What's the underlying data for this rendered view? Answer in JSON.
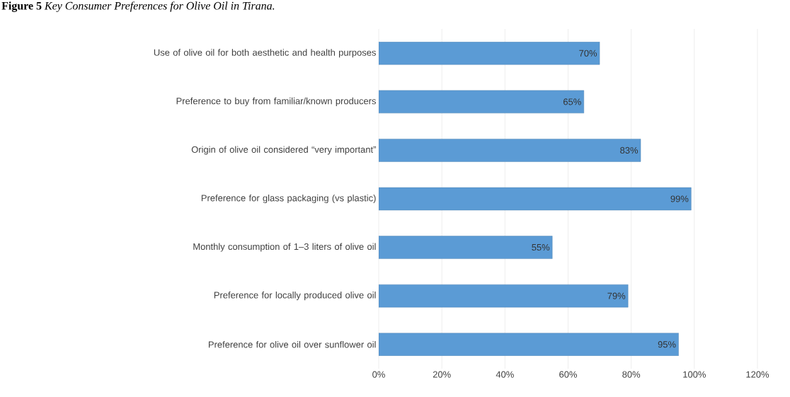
{
  "chart_data": {
    "type": "bar",
    "orientation": "horizontal",
    "title": "**Figure 5** *Key Consumer Preferences for Olive Oil in Tirana.*",
    "categories": [
      "Use of olive oil for both aesthetic and health purposes",
      "Preference to buy from familiar/known producers",
      "Origin of olive oil considered “very important”",
      "Preference for glass packaging (vs plastic)",
      "Monthly consumption of 1–3 liters of olive oil",
      "Preference for locally produced olive oil",
      "Preference for olive oil over sunflower oil"
    ],
    "values": [
      70,
      65,
      83,
      99,
      55,
      79,
      95
    ],
    "value_labels": [
      "70%",
      "65%",
      "83%",
      "99%",
      "55%",
      "79%",
      "95%"
    ],
    "color": "#5b9bd5",
    "xlim": [
      0,
      120
    ],
    "xticks": [
      {
        "value": 0,
        "label": "0%"
      },
      {
        "value": 20,
        "label": "20%"
      },
      {
        "value": 40,
        "label": "40%"
      },
      {
        "value": 60,
        "label": "60%"
      },
      {
        "value": 80,
        "label": "80%"
      },
      {
        "value": 100,
        "label": "100%"
      },
      {
        "value": 120,
        "label": "120%"
      }
    ],
    "grid": "x"
  }
}
